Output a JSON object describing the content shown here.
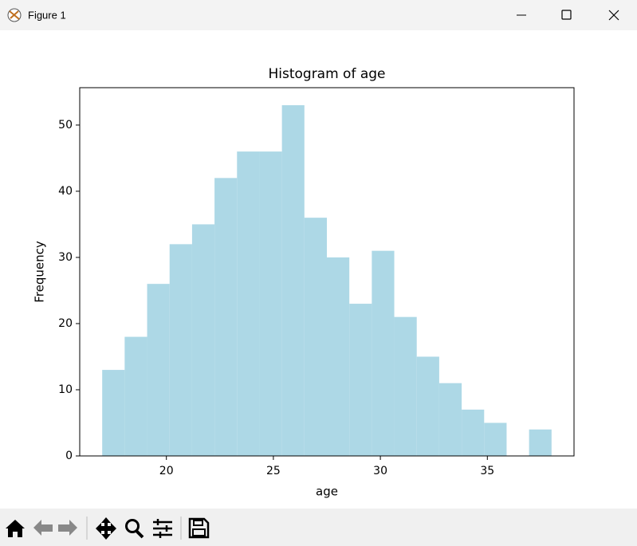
{
  "window": {
    "title": "Figure 1"
  },
  "chart_data": {
    "type": "histogram",
    "title": "Histogram of age",
    "x_label": "age",
    "y_label": "Frequency",
    "bins": [
      17,
      18.05,
      19.1,
      20.15,
      21.2,
      22.25,
      23.3,
      24.35,
      25.4,
      26.45,
      27.5,
      28.55,
      29.6,
      30.65,
      31.7,
      32.75,
      33.8,
      34.85,
      35.9,
      36.95,
      38
    ],
    "counts": [
      13,
      18,
      26,
      32,
      35,
      42,
      46,
      46,
      53,
      36,
      30,
      23,
      31,
      21,
      15,
      11,
      7,
      5,
      0,
      4
    ],
    "color": "#add8e6",
    "xlim": [
      15.95,
      39.05
    ],
    "xticks": [
      20,
      25,
      30,
      35
    ],
    "ylim": [
      0,
      55.65
    ],
    "yticks": [
      0,
      10,
      20,
      30,
      40,
      50
    ]
  }
}
